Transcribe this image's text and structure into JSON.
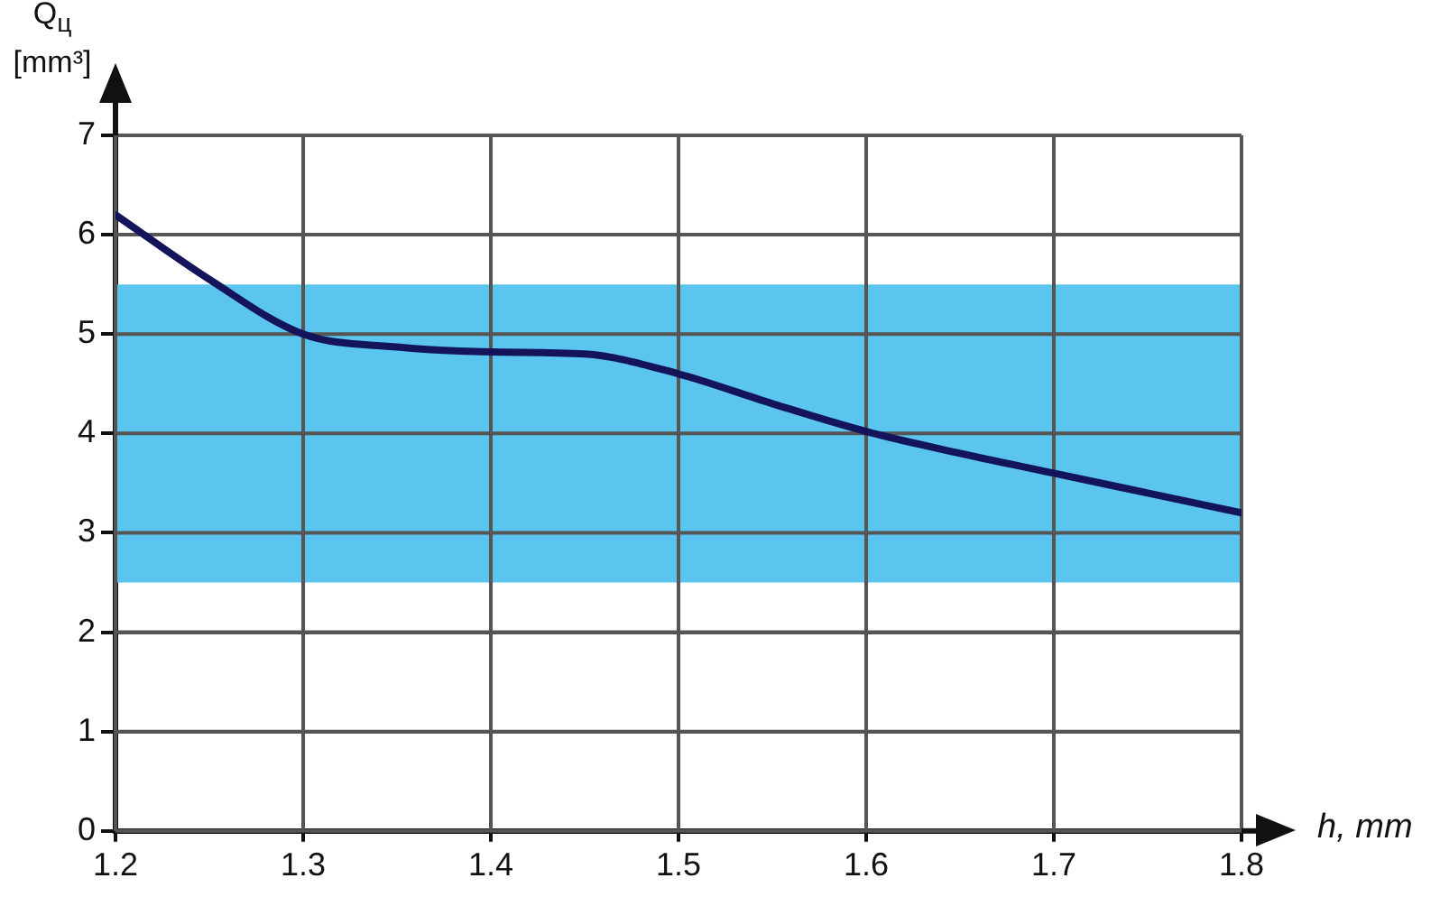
{
  "chart_data": {
    "type": "line",
    "xlabel": "h, mm",
    "ylabel": "Q$_{ц}$ [mm³]",
    "x": [
      1.2,
      1.25,
      1.3,
      1.35,
      1.4,
      1.45,
      1.5,
      1.55,
      1.6,
      1.65,
      1.7,
      1.75,
      1.8
    ],
    "series": [
      {
        "color": "#14145a",
        "values": [
          6.2,
          5.55,
          5.0,
          4.87,
          4.82,
          4.8,
          4.6,
          4.3,
          4.02,
          3.8,
          3.6,
          3.4,
          3.2
        ]
      }
    ],
    "xlim": [
      1.2,
      1.8
    ],
    "xticks": [
      1.2,
      1.3,
      1.4,
      1.5,
      1.6,
      1.7,
      1.8
    ],
    "ylim": [
      0,
      7
    ],
    "yticks": [
      0,
      1,
      2,
      3,
      4,
      5,
      6,
      7
    ],
    "bands": [
      {
        "axis": "y",
        "from": 2.5,
        "to": 5.5,
        "color": "#5bc4ef"
      }
    ],
    "grid": true,
    "legend": false,
    "marker": "none",
    "line_style": "solid"
  }
}
